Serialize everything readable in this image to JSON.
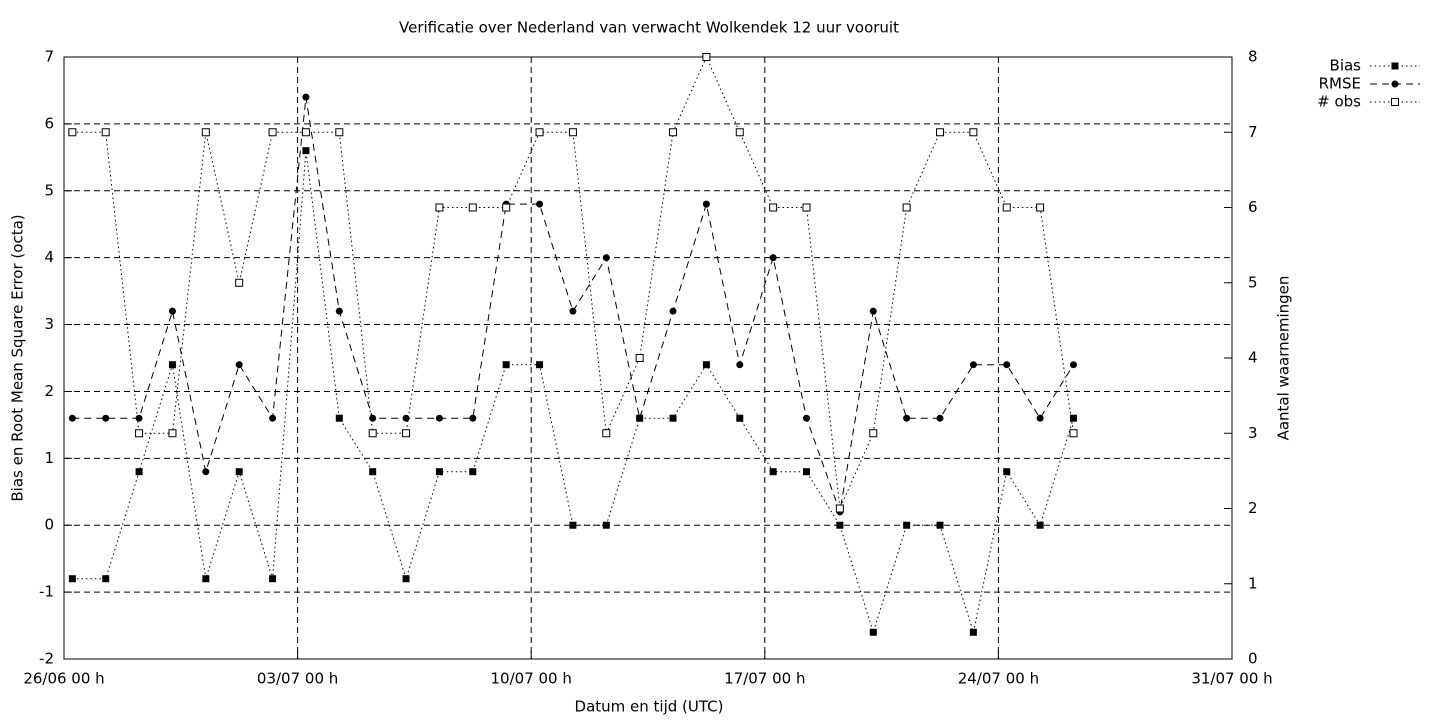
{
  "chart_data": {
    "type": "line",
    "title": "Verificatie over Nederland van verwacht Wolkendek 12 uur vooruit",
    "x_label": "Datum en tijd (UTC)",
    "y_label": "Bias en Root Mean Square Error (octa)",
    "y2_label": "Aantal waarnemingen",
    "x": [
      "26/06 06 h",
      "27/06 06 h",
      "28/06 06 h",
      "29/06 06 h",
      "30/06 06 h",
      "01/07 06 h",
      "02/07 06 h",
      "03/07 06 h",
      "04/07 06 h",
      "05/07 06 h",
      "06/07 06 h",
      "07/07 06 h",
      "08/07 06 h",
      "09/07 06 h",
      "10/07 06 h",
      "11/07 06 h",
      "12/07 06 h",
      "13/07 06 h",
      "14/07 06 h",
      "15/07 06 h",
      "16/07 06 h",
      "17/07 06 h",
      "18/07 06 h",
      "19/07 06 h",
      "20/07 06 h",
      "21/07 06 h",
      "22/07 06 h",
      "23/07 06 h",
      "24/07 06 h",
      "25/07 06 h",
      "26/07 06 h"
    ],
    "series": [
      {
        "name": "Bias",
        "color": "#000000",
        "marker": "square-filled",
        "line_style": "dotted",
        "values": [
          -0.8,
          -0.8,
          0.8,
          2.4,
          -0.8,
          0.8,
          -0.8,
          5.6,
          1.6,
          0.8,
          -0.8,
          0.8,
          0.8,
          2.4,
          2.4,
          0,
          0,
          1.6,
          1.6,
          2.4,
          1.6,
          0.8,
          0.8,
          0,
          -1.6,
          0,
          0,
          -1.6,
          0.8,
          0,
          1.6
        ]
      },
      {
        "name": "RMSE",
        "color": "#000000",
        "marker": "circle-filled",
        "line_style": "dashed",
        "values": [
          1.6,
          1.6,
          1.6,
          3.2,
          0.8,
          2.4,
          1.6,
          6.4,
          3.2,
          1.6,
          1.6,
          1.6,
          1.6,
          4.8,
          4.8,
          3.2,
          4.0,
          1.6,
          3.2,
          4.8,
          2.4,
          4.0,
          1.6,
          0.2,
          3.2,
          1.6,
          1.6,
          2.4,
          2.4,
          1.6,
          2.4
        ]
      },
      {
        "name": "# obs",
        "color": "#000000",
        "marker": "square-open",
        "line_style": "dotted",
        "axis": "y2",
        "values": [
          7,
          7,
          3,
          3,
          7,
          5,
          7,
          7,
          7,
          3,
          3,
          6,
          6,
          6,
          7,
          7,
          3,
          4,
          7,
          8,
          7,
          6,
          6,
          2,
          3,
          6,
          7,
          7,
          6,
          6,
          3
        ]
      }
    ],
    "xlim": [
      "26/06 00 h",
      "31/07 00 h"
    ],
    "xticks": [
      "26/06 00 h",
      "03/07 00 h",
      "10/07 00 h",
      "17/07 00 h",
      "24/07 00 h",
      "31/07 00 h"
    ],
    "ylim": [
      -2,
      7
    ],
    "yticks": [
      -2,
      -1,
      0,
      1,
      2,
      3,
      4,
      5,
      6,
      7
    ],
    "y2lim": [
      0,
      8
    ],
    "y2ticks": [
      0,
      1,
      2,
      3,
      4,
      5,
      6,
      7,
      8
    ],
    "grid": true,
    "legend": "outside-top-right"
  }
}
